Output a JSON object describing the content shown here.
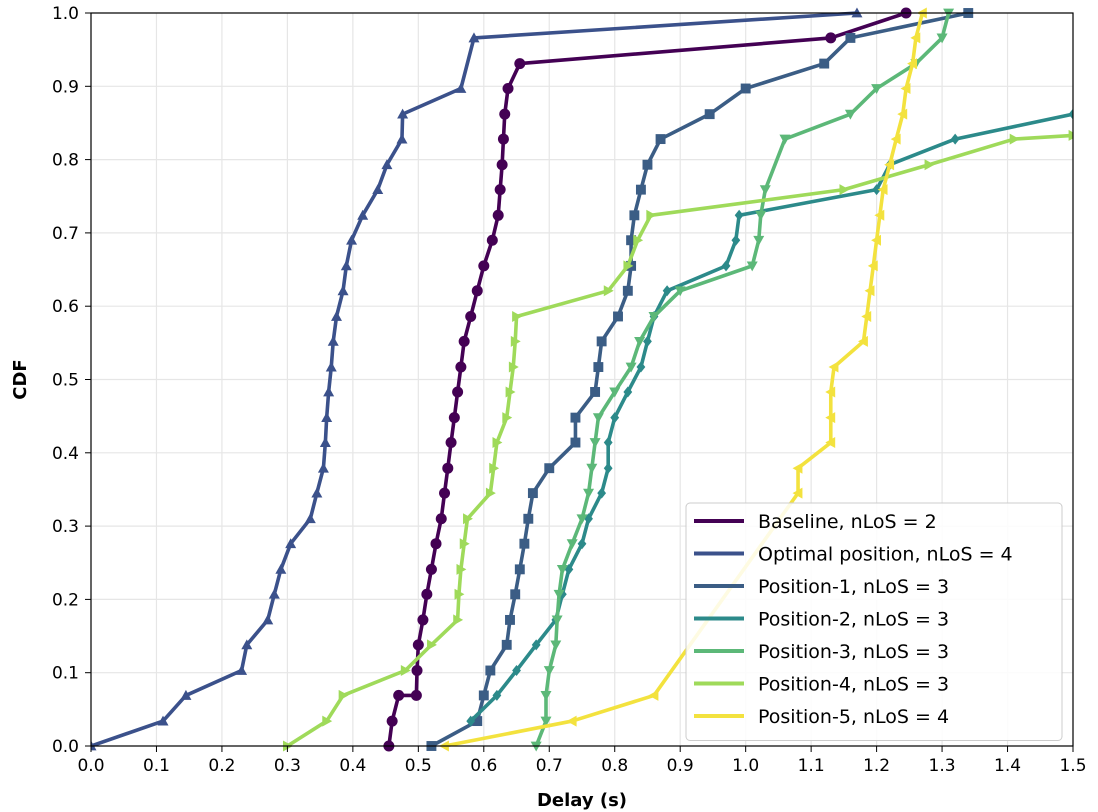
{
  "chart_data": {
    "type": "line",
    "title": "",
    "xlabel": "Delay (s)",
    "ylabel": "CDF",
    "xlim": [
      0.0,
      1.5
    ],
    "ylim": [
      0.0,
      1.0
    ],
    "xticks": [
      "0.0",
      "0.1",
      "0.2",
      "0.3",
      "0.4",
      "0.5",
      "0.6",
      "0.7",
      "0.8",
      "0.9",
      "1.0",
      "1.1",
      "1.2",
      "1.3",
      "1.4",
      "1.5"
    ],
    "yticks": [
      "0.0",
      "0.1",
      "0.2",
      "0.3",
      "0.4",
      "0.5",
      "0.6",
      "0.7",
      "0.8",
      "0.9",
      "1.0"
    ],
    "grid": true,
    "legend_position": "lower-right",
    "series": [
      {
        "name": "Baseline, nLoS = 2",
        "color": "#440154",
        "marker": "circle",
        "points": [
          [
            0.455,
            0.0
          ],
          [
            0.46,
            0.034
          ],
          [
            0.47,
            0.069
          ],
          [
            0.497,
            0.069
          ],
          [
            0.498,
            0.103
          ],
          [
            0.5,
            0.138
          ],
          [
            0.507,
            0.172
          ],
          [
            0.513,
            0.207
          ],
          [
            0.52,
            0.241
          ],
          [
            0.527,
            0.276
          ],
          [
            0.535,
            0.31
          ],
          [
            0.54,
            0.345
          ],
          [
            0.545,
            0.379
          ],
          [
            0.55,
            0.414
          ],
          [
            0.555,
            0.448
          ],
          [
            0.56,
            0.483
          ],
          [
            0.565,
            0.517
          ],
          [
            0.57,
            0.552
          ],
          [
            0.58,
            0.586
          ],
          [
            0.59,
            0.621
          ],
          [
            0.6,
            0.655
          ],
          [
            0.613,
            0.69
          ],
          [
            0.622,
            0.724
          ],
          [
            0.625,
            0.759
          ],
          [
            0.628,
            0.793
          ],
          [
            0.63,
            0.828
          ],
          [
            0.632,
            0.862
          ],
          [
            0.637,
            0.897
          ],
          [
            0.655,
            0.931
          ],
          [
            1.13,
            0.966
          ],
          [
            1.245,
            1.0
          ]
        ]
      },
      {
        "name": "Optimal position, nLoS = 4",
        "color": "#3b518b",
        "marker": "triangle-up",
        "points": [
          [
            0.0,
            0.0
          ],
          [
            0.11,
            0.034
          ],
          [
            0.145,
            0.069
          ],
          [
            0.23,
            0.103
          ],
          [
            0.238,
            0.138
          ],
          [
            0.27,
            0.172
          ],
          [
            0.28,
            0.207
          ],
          [
            0.29,
            0.241
          ],
          [
            0.305,
            0.276
          ],
          [
            0.335,
            0.31
          ],
          [
            0.345,
            0.345
          ],
          [
            0.355,
            0.379
          ],
          [
            0.358,
            0.414
          ],
          [
            0.36,
            0.448
          ],
          [
            0.363,
            0.483
          ],
          [
            0.367,
            0.517
          ],
          [
            0.37,
            0.552
          ],
          [
            0.375,
            0.586
          ],
          [
            0.385,
            0.621
          ],
          [
            0.39,
            0.655
          ],
          [
            0.398,
            0.69
          ],
          [
            0.415,
            0.724
          ],
          [
            0.438,
            0.759
          ],
          [
            0.452,
            0.793
          ],
          [
            0.475,
            0.828
          ],
          [
            0.476,
            0.862
          ],
          [
            0.565,
            0.897
          ],
          [
            0.585,
            0.966
          ],
          [
            1.17,
            1.0
          ]
        ]
      },
      {
        "name": "Position-1, nLoS = 3",
        "color": "#3b5d85",
        "marker": "square",
        "points": [
          [
            0.52,
            0.0
          ],
          [
            0.59,
            0.034
          ],
          [
            0.6,
            0.069
          ],
          [
            0.61,
            0.103
          ],
          [
            0.635,
            0.138
          ],
          [
            0.64,
            0.172
          ],
          [
            0.648,
            0.207
          ],
          [
            0.655,
            0.241
          ],
          [
            0.662,
            0.276
          ],
          [
            0.668,
            0.31
          ],
          [
            0.675,
            0.345
          ],
          [
            0.7,
            0.379
          ],
          [
            0.74,
            0.414
          ],
          [
            0.74,
            0.448
          ],
          [
            0.77,
            0.483
          ],
          [
            0.775,
            0.517
          ],
          [
            0.78,
            0.552
          ],
          [
            0.805,
            0.586
          ],
          [
            0.82,
            0.621
          ],
          [
            0.825,
            0.655
          ],
          [
            0.825,
            0.69
          ],
          [
            0.83,
            0.724
          ],
          [
            0.84,
            0.759
          ],
          [
            0.85,
            0.793
          ],
          [
            0.87,
            0.828
          ],
          [
            0.945,
            0.862
          ],
          [
            1.0,
            0.897
          ],
          [
            1.12,
            0.931
          ],
          [
            1.16,
            0.966
          ],
          [
            1.34,
            1.0
          ]
        ]
      },
      {
        "name": "Position-2, nLoS = 3",
        "color": "#2c8a8a",
        "marker": "diamond",
        "points": [
          [
            0.58,
            0.034
          ],
          [
            0.62,
            0.069
          ],
          [
            0.65,
            0.103
          ],
          [
            0.68,
            0.138
          ],
          [
            0.71,
            0.172
          ],
          [
            0.72,
            0.207
          ],
          [
            0.73,
            0.241
          ],
          [
            0.75,
            0.276
          ],
          [
            0.76,
            0.31
          ],
          [
            0.78,
            0.345
          ],
          [
            0.79,
            0.379
          ],
          [
            0.79,
            0.414
          ],
          [
            0.8,
            0.448
          ],
          [
            0.82,
            0.483
          ],
          [
            0.84,
            0.517
          ],
          [
            0.85,
            0.552
          ],
          [
            0.86,
            0.586
          ],
          [
            0.88,
            0.621
          ],
          [
            0.97,
            0.655
          ],
          [
            0.985,
            0.69
          ],
          [
            0.99,
            0.724
          ],
          [
            1.2,
            0.759
          ],
          [
            1.22,
            0.793
          ],
          [
            1.32,
            0.828
          ],
          [
            1.5,
            0.862
          ]
        ]
      },
      {
        "name": "Position-3, nLoS = 3",
        "color": "#5cb878",
        "marker": "triangle-down",
        "points": [
          [
            0.68,
            0.0
          ],
          [
            0.695,
            0.034
          ],
          [
            0.695,
            0.069
          ],
          [
            0.7,
            0.103
          ],
          [
            0.71,
            0.138
          ],
          [
            0.712,
            0.172
          ],
          [
            0.715,
            0.207
          ],
          [
            0.72,
            0.241
          ],
          [
            0.735,
            0.276
          ],
          [
            0.75,
            0.31
          ],
          [
            0.76,
            0.345
          ],
          [
            0.765,
            0.379
          ],
          [
            0.77,
            0.414
          ],
          [
            0.775,
            0.448
          ],
          [
            0.8,
            0.483
          ],
          [
            0.825,
            0.517
          ],
          [
            0.838,
            0.552
          ],
          [
            0.86,
            0.586
          ],
          [
            0.9,
            0.621
          ],
          [
            1.01,
            0.655
          ],
          [
            1.02,
            0.69
          ],
          [
            1.023,
            0.724
          ],
          [
            1.03,
            0.759
          ],
          [
            1.06,
            0.828
          ],
          [
            1.16,
            0.862
          ],
          [
            1.2,
            0.897
          ],
          [
            1.26,
            0.931
          ],
          [
            1.3,
            0.966
          ],
          [
            1.31,
            1.0
          ]
        ]
      },
      {
        "name": "Position-4, nLoS = 3",
        "color": "#9fda5a",
        "marker": "triangle-right",
        "points": [
          [
            0.3,
            0.0
          ],
          [
            0.36,
            0.034
          ],
          [
            0.385,
            0.069
          ],
          [
            0.48,
            0.103
          ],
          [
            0.52,
            0.138
          ],
          [
            0.56,
            0.172
          ],
          [
            0.562,
            0.207
          ],
          [
            0.565,
            0.241
          ],
          [
            0.57,
            0.276
          ],
          [
            0.575,
            0.31
          ],
          [
            0.61,
            0.345
          ],
          [
            0.615,
            0.379
          ],
          [
            0.62,
            0.414
          ],
          [
            0.635,
            0.448
          ],
          [
            0.64,
            0.483
          ],
          [
            0.645,
            0.517
          ],
          [
            0.648,
            0.552
          ],
          [
            0.65,
            0.586
          ],
          [
            0.79,
            0.621
          ],
          [
            0.82,
            0.655
          ],
          [
            0.835,
            0.69
          ],
          [
            0.855,
            0.724
          ],
          [
            1.15,
            0.759
          ],
          [
            1.28,
            0.793
          ],
          [
            1.41,
            0.828
          ],
          [
            1.5,
            0.833
          ]
        ]
      },
      {
        "name": "Position-5, nLoS = 4",
        "color": "#f3e23e",
        "marker": "triangle-left",
        "points": [
          [
            0.54,
            0.0
          ],
          [
            0.735,
            0.034
          ],
          [
            0.86,
            0.069
          ],
          [
            1.08,
            0.345
          ],
          [
            1.08,
            0.379
          ],
          [
            1.13,
            0.414
          ],
          [
            1.13,
            0.448
          ],
          [
            1.13,
            0.483
          ],
          [
            1.135,
            0.517
          ],
          [
            1.18,
            0.552
          ],
          [
            1.185,
            0.586
          ],
          [
            1.19,
            0.621
          ],
          [
            1.195,
            0.655
          ],
          [
            1.2,
            0.69
          ],
          [
            1.205,
            0.724
          ],
          [
            1.21,
            0.759
          ],
          [
            1.22,
            0.793
          ],
          [
            1.23,
            0.828
          ],
          [
            1.24,
            0.862
          ],
          [
            1.245,
            0.897
          ],
          [
            1.255,
            0.931
          ],
          [
            1.26,
            0.966
          ],
          [
            1.27,
            1.0
          ]
        ]
      }
    ]
  }
}
